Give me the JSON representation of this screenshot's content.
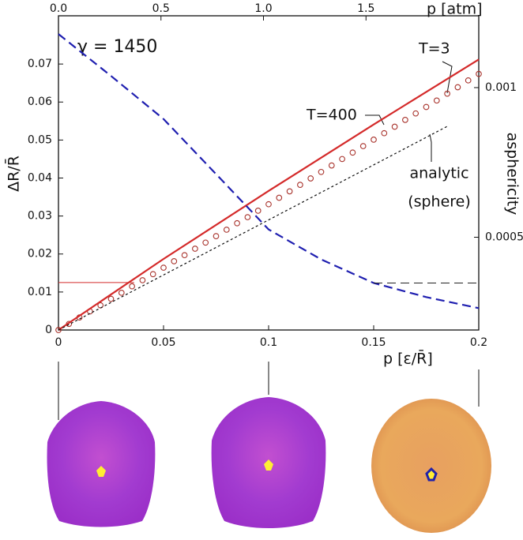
{
  "chart_data": {
    "type": "line",
    "x_label": "p [ε/R̄]",
    "x2_label": "p [atm]",
    "y_label": "ΔR/R̄",
    "y2_label": "asphericity",
    "annotation": "γ = 1450",
    "xlim": [
      0,
      0.2
    ],
    "xticks": [
      0,
      0.05,
      0.1,
      0.15,
      0.2
    ],
    "ylim": [
      0,
      0.0827
    ],
    "yticks": [
      0,
      0.01,
      0.02,
      0.03,
      0.04,
      0.05,
      0.06,
      0.07
    ],
    "x2lim": [
      0,
      2.05
    ],
    "x2ticks": [
      {
        "value": 0,
        "label": "0.0"
      },
      0.5,
      {
        "value": 1,
        "label": "1.0"
      },
      1.5
    ],
    "y2lim": [
      0.00019,
      0.00124
    ],
    "y2ticks": [
      0.0005,
      0.001
    ],
    "series": [
      {
        "name": "T=3",
        "color": "#a8322b",
        "style": "markers",
        "x": [
          0,
          0.005,
          0.01,
          0.015,
          0.02,
          0.025,
          0.03,
          0.035,
          0.04,
          0.045,
          0.05,
          0.055,
          0.06,
          0.065,
          0.07,
          0.075,
          0.08,
          0.085,
          0.09,
          0.095,
          0.1,
          0.105,
          0.11,
          0.115,
          0.12,
          0.125,
          0.13,
          0.135,
          0.14,
          0.145,
          0.15,
          0.155,
          0.16,
          0.165,
          0.17,
          0.175,
          0.18,
          0.185,
          0.19,
          0.195,
          0.2
        ],
        "values": [
          0,
          0.0016,
          0.0033,
          0.0049,
          0.0065,
          0.0082,
          0.0098,
          0.0115,
          0.0131,
          0.0147,
          0.0164,
          0.0181,
          0.0197,
          0.0214,
          0.023,
          0.0247,
          0.0264,
          0.0281,
          0.0297,
          0.0314,
          0.0331,
          0.0348,
          0.0365,
          0.0382,
          0.0399,
          0.0416,
          0.0433,
          0.045,
          0.0467,
          0.0484,
          0.0501,
          0.0518,
          0.0535,
          0.0553,
          0.057,
          0.0587,
          0.0604,
          0.0622,
          0.0639,
          0.0657,
          0.0674
        ]
      },
      {
        "name": "T=400",
        "color": "#d42a2a",
        "style": "solid",
        "x": [
          0,
          0.05,
          0.1,
          0.15,
          0.2
        ],
        "values": [
          0,
          0.0187,
          0.0366,
          0.0541,
          0.0712
        ]
      },
      {
        "label_lines": [
          "analytic",
          "(sphere)"
        ],
        "color": "#111111",
        "style": "dotted",
        "x": [
          0,
          0.185
        ],
        "values": [
          0,
          0.0536
        ]
      },
      {
        "color": "#1f1fb0",
        "style": "dashed",
        "axis": "y2",
        "x": [
          0,
          0.025,
          0.05,
          0.075,
          0.1,
          0.125,
          0.15,
          0.175,
          0.2
        ],
        "values": [
          0.001179,
          0.001039,
          0.000895,
          0.000711,
          0.000526,
          0.000426,
          0.000347,
          0.0003,
          0.000263
        ]
      }
    ],
    "reference_lines": [
      {
        "axis": "y",
        "value": 0.0125,
        "x": [
          0,
          0.036
        ],
        "color": "#d42a2a",
        "style": "solid"
      },
      {
        "axis": "y2",
        "value": 0.000347,
        "x": [
          0.15,
          0.2
        ],
        "color": "#222222",
        "style": "dashed"
      }
    ]
  }
}
